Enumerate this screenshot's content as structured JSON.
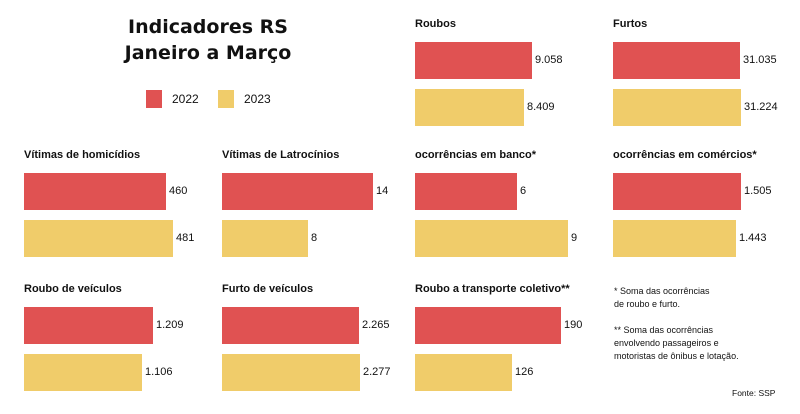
{
  "header": {
    "title_line1": "Indicadores RS",
    "title_line2": "Janeiro a Março"
  },
  "legend": [
    {
      "label": "2022",
      "color": "#e05252"
    },
    {
      "label": "2023",
      "color": "#f0cc6a"
    }
  ],
  "notes": {
    "note1_line1": "* Soma das ocorrências",
    "note1_line2": "de roubo e furto.",
    "note2_line1": "** Soma das ocorrências",
    "note2_line2": "envolvendo passageiros e",
    "note2_line3": "motoristas de ônibus e lotação."
  },
  "source": "Fonte: SSP",
  "chart_data": [
    {
      "type": "bar",
      "title": "Roubos",
      "categories": [
        "2022",
        "2023"
      ],
      "values": [
        9058,
        8409
      ],
      "labels": [
        "9.058",
        "8.409"
      ]
    },
    {
      "type": "bar",
      "title": "Furtos",
      "categories": [
        "2022",
        "2023"
      ],
      "values": [
        31035,
        31224
      ],
      "labels": [
        "31.035",
        "31.224"
      ]
    },
    {
      "type": "bar",
      "title": "Vítimas de homicídios",
      "categories": [
        "2022",
        "2023"
      ],
      "values": [
        460,
        481
      ],
      "labels": [
        "460",
        "481"
      ]
    },
    {
      "type": "bar",
      "title": "Vítimas de Latrocínios",
      "categories": [
        "2022",
        "2023"
      ],
      "values": [
        14,
        8
      ],
      "labels": [
        "14",
        "8"
      ]
    },
    {
      "type": "bar",
      "title": "ocorrências em banco*",
      "categories": [
        "2022",
        "2023"
      ],
      "values": [
        6,
        9
      ],
      "labels": [
        "6",
        "9"
      ]
    },
    {
      "type": "bar",
      "title": "ocorrências em comércios*",
      "categories": [
        "2022",
        "2023"
      ],
      "values": [
        1505,
        1443
      ],
      "labels": [
        "1.505",
        "1.443"
      ]
    },
    {
      "type": "bar",
      "title": "Roubo de veículos",
      "categories": [
        "2022",
        "2023"
      ],
      "values": [
        1209,
        1106
      ],
      "labels": [
        "1.209",
        "1.106"
      ]
    },
    {
      "type": "bar",
      "title": "Furto de veículos",
      "categories": [
        "2022",
        "2023"
      ],
      "values": [
        2265,
        2277
      ],
      "labels": [
        "2.265",
        "2.277"
      ]
    },
    {
      "type": "bar",
      "title": "Roubo a transporte coletivo**",
      "categories": [
        "2022",
        "2023"
      ],
      "values": [
        190,
        126
      ],
      "labels": [
        "190",
        "126"
      ]
    }
  ]
}
